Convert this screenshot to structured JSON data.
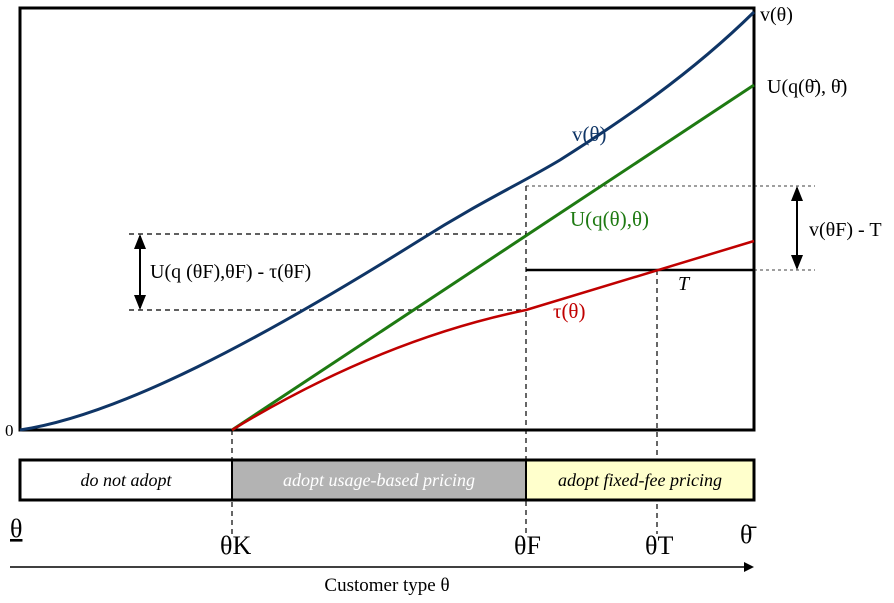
{
  "curves": [
    {
      "label": "v(θ)",
      "color": "#0f3566"
    },
    {
      "label": "U(q(θ),θ)",
      "color": "#1e7a12"
    },
    {
      "label": "τ(θ)",
      "color": "#c00000"
    }
  ],
  "labels": {
    "origin": "0",
    "v_right": "v(θ)",
    "u_bar": "U(q(θ̄), θ̄)",
    "v_curve": "v(θ)",
    "u_curve": "U(q(θ),θ)",
    "tau_curve": "τ(θ)",
    "T": "T",
    "v_minus_T": "v(θF) - T",
    "u_minus_tau": "U(q  (θF),θF) - τ(θF)"
  },
  "regions": [
    {
      "label": "do not adopt",
      "color": "#ffffff"
    },
    {
      "label": "adopt usage-based pricing",
      "color": "#b3b3b3"
    },
    {
      "label": "adopt fixed-fee pricing",
      "color": "#ffffcc"
    }
  ],
  "axis": {
    "theta_low": "θ",
    "theta_K": "θK",
    "theta_F": "θF",
    "theta_T": "θT",
    "theta_high": "θ̄",
    "title": "Customer type θ"
  }
}
